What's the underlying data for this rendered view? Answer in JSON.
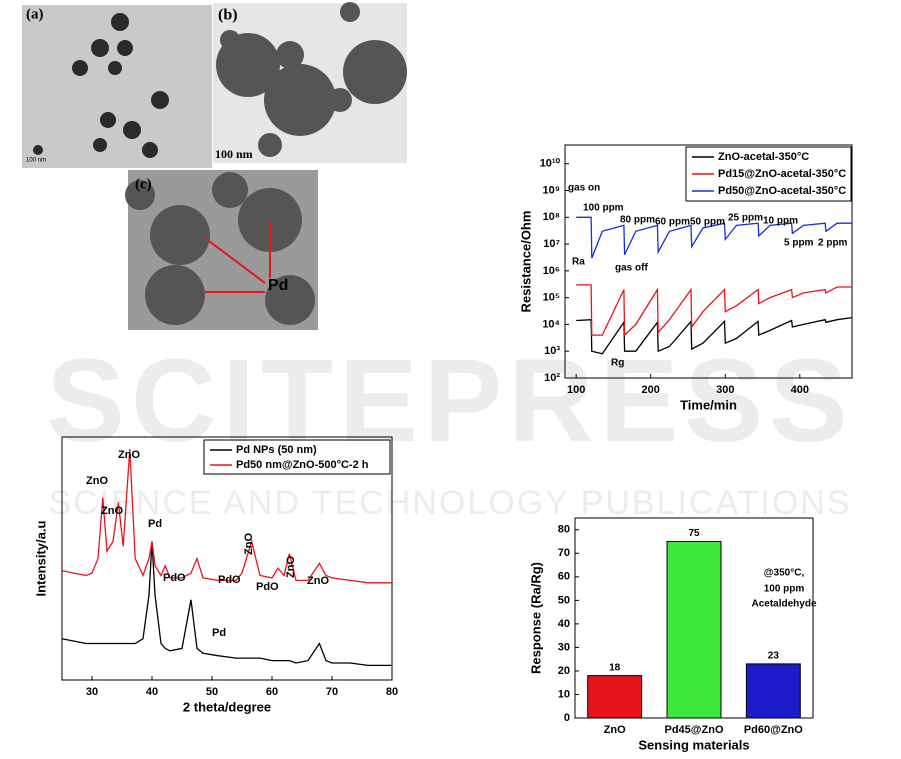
{
  "images": [
    {
      "label": "(a)",
      "scale_bar": "100 nm"
    },
    {
      "label": "(b)",
      "scale_bar": "100 nm"
    },
    {
      "label": "(c)",
      "annotation": "Pd"
    }
  ],
  "watermark": {
    "title": "SCITEPRESS",
    "subtitle": "SCIENCE AND TECHNOLOGY PUBLICATIONS"
  },
  "chart_data": [
    {
      "type": "line",
      "x_label": "Time/min",
      "y_label": "Resistance/Ohm",
      "log_y": true,
      "legend": "upper right",
      "x": [
        100,
        120,
        121,
        135,
        164,
        165,
        180,
        209,
        210,
        225,
        254,
        255,
        270,
        299,
        300,
        315,
        344,
        345,
        360,
        389,
        390,
        405,
        434,
        435,
        450,
        470
      ],
      "series": [
        {
          "name": "ZnO-acetal-350°C",
          "color": "#000000",
          "values": [
            14000,
            15000,
            1000,
            800,
            12000,
            1000,
            1000,
            12000,
            1000,
            1500,
            13000,
            1200,
            2000,
            13000,
            2000,
            3000,
            13000,
            4000,
            6000,
            14000,
            8000,
            10000,
            15000,
            12000,
            15000,
            18000
          ]
        },
        {
          "name": "Pd15@ZnO-acetal-350°C",
          "color": "#e8141c",
          "values": [
            300000,
            300000,
            4000,
            4000,
            200000,
            4000,
            10000,
            200000,
            5000,
            15000,
            200000,
            8000,
            30000,
            200000,
            30000,
            50000,
            200000,
            60000,
            100000,
            200000,
            100000,
            150000,
            200000,
            150000,
            250000,
            250000
          ]
        },
        {
          "name": "Pd50@ZnO-acetal-350°C",
          "color": "#1430e0",
          "values": [
            100000000,
            100000000,
            3000000,
            30000000,
            50000000,
            4000000,
            30000000,
            50000000,
            5000000,
            30000000,
            50000000,
            8000000,
            40000000,
            60000000,
            15000000,
            50000000,
            60000000,
            20000000,
            50000000,
            60000000,
            25000000,
            50000000,
            60000000,
            30000000,
            60000000,
            60000000
          ]
        }
      ],
      "xlim": [
        85,
        470
      ],
      "xticks": [
        100,
        200,
        300,
        400
      ],
      "ylim": [
        100,
        50000000000
      ],
      "yticks": [
        {
          "value": 100,
          "label": "10²"
        },
        {
          "value": 1000,
          "label": "10³"
        },
        {
          "value": 10000,
          "label": "10⁴"
        },
        {
          "value": 100000,
          "label": "10⁵"
        },
        {
          "value": 1000000,
          "label": "10⁶"
        },
        {
          "value": 10000000,
          "label": "10⁷"
        },
        {
          "value": 100000000,
          "label": "10⁸"
        },
        {
          "value": 1000000000,
          "label": "10⁹"
        },
        {
          "value": 10000000000,
          "label": "10¹⁰"
        }
      ],
      "annotations": [
        "gas on",
        "100 ppm",
        "80 ppm",
        "60 ppm",
        "50 ppm",
        "25 ppm",
        "10 ppm",
        "5 ppm",
        "2 ppm",
        "gas off",
        "Ra",
        "Rg"
      ]
    },
    {
      "type": "line",
      "x_label": "2 theta/degree",
      "y_label": "Intensity/a.u",
      "legend": "upper right",
      "x": [
        25,
        27,
        29,
        30,
        31,
        31.8,
        32.5,
        33.5,
        34.4,
        35.2,
        36.3,
        37.2,
        38.5,
        39.5,
        40,
        40.5,
        41.5,
        42.2,
        43,
        45,
        46.5,
        47.5,
        48.5,
        51,
        54,
        55,
        56.6,
        58,
        60,
        61,
        62,
        62.9,
        64,
        66,
        67.9,
        69,
        70,
        73,
        76,
        80
      ],
      "series": [
        {
          "name": "Pd NPs (50 nm)",
          "color": "#000000",
          "values": [
            22,
            21,
            20,
            20,
            20,
            20,
            20,
            20,
            20,
            20,
            20,
            20,
            22,
            40,
            62,
            40,
            20,
            18,
            17,
            18,
            38,
            18,
            16,
            15,
            14,
            14,
            14,
            14,
            13,
            13,
            13,
            13,
            12,
            13,
            20,
            13,
            12,
            12,
            11,
            11
          ]
        },
        {
          "name": "Pd50 nm@ZnO-500°C-2 h",
          "color": "#e8141c",
          "values": [
            50,
            49,
            48,
            49,
            55,
            80,
            58,
            62,
            78,
            60,
            100,
            55,
            48,
            55,
            62,
            52,
            48,
            52,
            47,
            47,
            49,
            55,
            47,
            46,
            46,
            49,
            62,
            48,
            47,
            51,
            48,
            57,
            46,
            46,
            53,
            48,
            47,
            46,
            45,
            45
          ]
        }
      ],
      "xlim": [
        25,
        80
      ],
      "xticks": [
        30,
        40,
        50,
        60,
        70,
        80
      ],
      "ylim": [
        5,
        105
      ],
      "annotations": [
        "ZnO",
        "ZnO",
        "ZnO",
        "Pd",
        "PdO",
        "PdO",
        "ZnO",
        "PdO",
        "ZnO",
        "ZnO",
        "Pd"
      ]
    },
    {
      "type": "bar",
      "x_label": "Sensing materials",
      "y_label": "Response (Ra/Rg)",
      "categories": [
        "ZnO",
        "Pd45@ZnO",
        "Pd60@ZnO"
      ],
      "values": [
        18,
        75,
        23
      ],
      "colors": [
        "#e8141c",
        "#3ce83c",
        "#1c1cc8"
      ],
      "ylim": [
        0,
        85
      ],
      "yticks": [
        0,
        10,
        20,
        30,
        40,
        50,
        60,
        70,
        80
      ],
      "annotations": [
        "@350°C,",
        "100 ppm",
        "Acetaldehyde"
      ]
    }
  ]
}
